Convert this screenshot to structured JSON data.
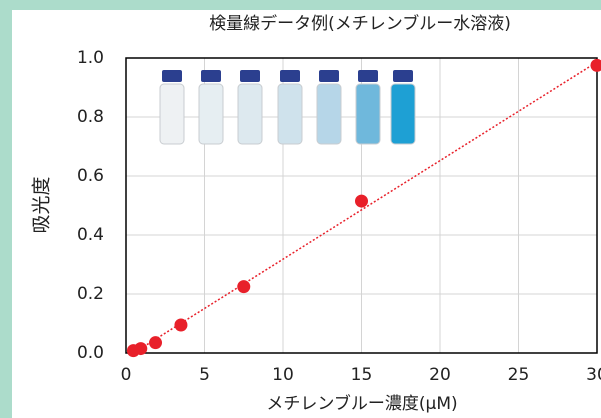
{
  "chart_data": {
    "type": "scatter",
    "title": "検量線データ例(メチレンブルー水溶液)",
    "x_label": "メチレンブルー濃度(μM)",
    "y_label": "吸光度",
    "x": [
      0.47,
      0.94,
      1.88,
      3.5,
      7.5,
      15,
      30
    ],
    "values": [
      0.008,
      0.015,
      0.035,
      0.095,
      0.225,
      0.515,
      0.975
    ],
    "color": "#e8202a",
    "trendline": true,
    "xlim": [
      0,
      30
    ],
    "xticks": [
      0,
      5,
      10,
      15,
      20,
      25,
      30
    ],
    "ylim": [
      0,
      1
    ],
    "yticks": [
      {
        "value": 0,
        "label": "0.0"
      },
      0.2,
      0.4,
      0.6,
      0.8,
      {
        "value": 1,
        "label": "1.0"
      }
    ],
    "grid": true
  }
}
